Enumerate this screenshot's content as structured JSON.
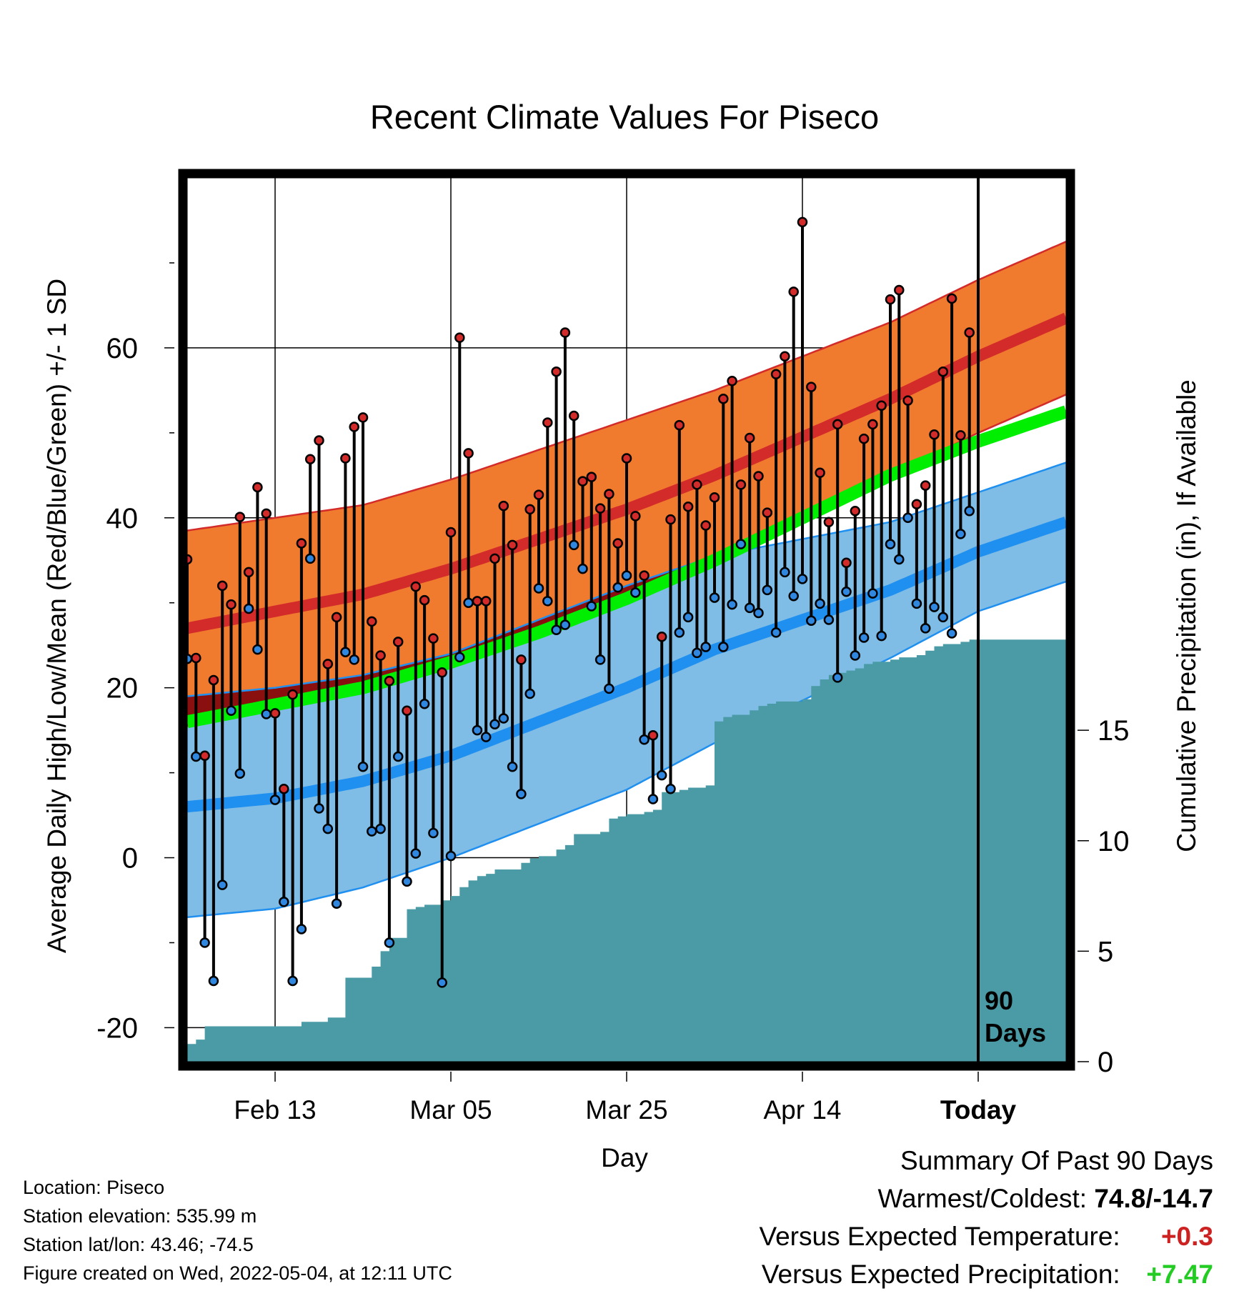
{
  "chart_data": {
    "type": "line",
    "title": "Recent Climate Values For Piseco",
    "xlabel": "Day",
    "ylabel_left": "Average Daily High/Low/Mean (Red/Blue/Green) +/- 1 SD",
    "ylabel_right": "Cumulative Precipitation (in), If Available",
    "x_range_days": [
      -88,
      12
    ],
    "x_ticks": [
      {
        "day": -78,
        "label": "Feb 13"
      },
      {
        "day": -58,
        "label": "Mar 05"
      },
      {
        "day": -38,
        "label": "Mar 25"
      },
      {
        "day": -18,
        "label": "Apr 14"
      },
      {
        "day": 2,
        "label": "Today"
      }
    ],
    "ylim_left": [
      -24,
      80
    ],
    "y_ticks_left": [
      "-20",
      "0",
      "20",
      "40",
      "60"
    ],
    "ylim_right": [
      0,
      40
    ],
    "y_ticks_right": [
      "0",
      "5",
      "10",
      "15"
    ],
    "today_marker": {
      "day": 2,
      "label_line1": "90",
      "label_line2": "Days"
    },
    "normals": {
      "days": [
        -88,
        -78,
        -68,
        -58,
        -48,
        -38,
        -28,
        -18,
        -8,
        2,
        12
      ],
      "high": [
        27,
        29,
        31,
        34,
        37.5,
        41,
        45,
        49.5,
        54,
        59,
        63.5
      ],
      "high_sd": [
        11.5,
        11,
        10.5,
        10.5,
        10.5,
        10.5,
        10,
        9.5,
        9,
        9,
        9
      ],
      "low": [
        6,
        7,
        9,
        12,
        16,
        20,
        24.5,
        28,
        31.5,
        36,
        39.5
      ],
      "low_sd": [
        13,
        13,
        12.5,
        12,
        12,
        12,
        11,
        9.5,
        8,
        7,
        7
      ],
      "mean": [
        16,
        18,
        20,
        23,
        26.5,
        30.5,
        35,
        40,
        45,
        49,
        52.5
      ]
    },
    "series": [
      {
        "name": "High",
        "values": [
          35.1,
          23.5,
          12.0,
          20.9,
          32.0,
          29.8,
          40.1,
          33.6,
          43.6,
          40.5,
          17.0,
          8.1,
          19.2,
          37.0,
          46.9,
          49.1,
          22.8,
          28.3,
          47.0,
          50.7,
          51.8,
          27.8,
          23.8,
          20.8,
          25.4,
          17.3,
          31.9,
          30.3,
          25.8,
          21.8,
          38.3,
          61.2,
          47.6,
          30.2,
          30.2,
          35.2,
          41.4,
          36.8,
          23.3,
          41.0,
          42.7,
          51.2,
          57.2,
          61.8,
          52.0,
          44.3,
          44.8,
          41.1,
          42.8,
          37.0,
          47.0,
          40.2,
          33.2,
          14.4,
          26.0,
          39.8,
          50.9,
          41.3,
          43.9,
          39.1,
          42.4,
          54.0,
          56.1,
          43.9,
          49.4,
          44.9,
          40.6,
          56.9,
          59.0,
          66.6,
          74.8,
          55.4,
          45.3,
          39.5,
          51.0,
          34.7,
          40.8,
          49.3,
          51.0,
          53.2,
          65.7,
          66.8,
          53.8,
          41.6,
          43.8,
          49.8,
          57.2,
          65.8,
          49.7,
          61.8
        ],
        "color": "#d32a2a"
      },
      {
        "name": "Low",
        "values": [
          23.4,
          11.9,
          -10.0,
          -14.5,
          -3.2,
          17.3,
          9.9,
          29.3,
          24.5,
          16.9,
          6.8,
          -5.2,
          -14.5,
          -8.4,
          35.2,
          5.8,
          3.4,
          -5.4,
          24.2,
          23.3,
          10.7,
          3.1,
          3.4,
          -10.0,
          11.9,
          -2.8,
          0.5,
          18.1,
          2.9,
          -14.7,
          0.2,
          23.6,
          30.0,
          15.0,
          14.2,
          15.7,
          16.4,
          10.7,
          7.5,
          19.3,
          31.7,
          30.2,
          26.8,
          27.4,
          36.8,
          34.0,
          29.6,
          23.3,
          19.9,
          31.8,
          33.2,
          31.2,
          13.9,
          6.9,
          9.7,
          8.1,
          26.5,
          28.3,
          24.1,
          24.8,
          30.6,
          24.8,
          29.8,
          36.9,
          29.4,
          28.8,
          31.5,
          26.5,
          33.6,
          30.8,
          32.8,
          27.9,
          29.9,
          28.0,
          21.2,
          31.3,
          23.8,
          25.9,
          31.1,
          26.1,
          36.9,
          35.1,
          40.0,
          29.9,
          27.0,
          29.5,
          28.3,
          26.4,
          38.1,
          40.8
        ],
        "color": "#2f87e0"
      },
      {
        "name": "Cumulative Precipitation",
        "days": [
          -88,
          -87,
          -86,
          -76,
          -75,
          -73,
          -72,
          -71,
          -70,
          -68,
          -67,
          -66,
          -65,
          -64,
          -63,
          -62,
          -61,
          -60,
          -59,
          -58,
          -57,
          -56,
          -55,
          -54,
          -53,
          -51,
          -50,
          -49,
          -48,
          -47,
          -46,
          -45,
          -44,
          -43,
          -42,
          -41,
          -40,
          -39,
          -38,
          -37,
          -36,
          -35,
          -34,
          -33,
          -32,
          -31,
          -30,
          -29,
          -28,
          -27,
          -26,
          -25,
          -24,
          -23,
          -22,
          -21,
          -20,
          -19,
          -18,
          -17,
          -16,
          -15,
          -14,
          -13,
          -12,
          -11,
          -10,
          -9,
          -8,
          -7,
          -6,
          -5,
          -4,
          -3,
          -2,
          -1,
          0,
          1,
          2,
          12
        ],
        "values": [
          0.8,
          1.0,
          1.6,
          1.6,
          1.8,
          1.8,
          2.0,
          2.0,
          3.8,
          3.8,
          4.3,
          5.0,
          5.6,
          5.6,
          6.9,
          7.0,
          7.1,
          7.1,
          7.3,
          7.5,
          7.9,
          8.2,
          8.4,
          8.5,
          8.7,
          8.7,
          9.0,
          9.2,
          9.3,
          9.3,
          9.6,
          9.8,
          10.3,
          10.3,
          10.3,
          10.4,
          11.0,
          11.1,
          11.2,
          11.2,
          11.3,
          11.4,
          12.2,
          12.2,
          12.3,
          12.4,
          12.4,
          12.5,
          15.4,
          15.6,
          15.7,
          15.7,
          15.9,
          16.1,
          16.2,
          16.3,
          16.3,
          16.3,
          16.4,
          17.0,
          17.3,
          17.5,
          17.6,
          17.7,
          17.8,
          18.0,
          18.1,
          18.1,
          18.2,
          18.3,
          18.3,
          18.4,
          18.6,
          18.8,
          18.9,
          18.9,
          19.0,
          19.1,
          19.1,
          19.1
        ],
        "color": "#4a9ba5"
      }
    ]
  },
  "info": {
    "location": "Location: Piseco",
    "elevation": "Station elevation: 535.99 m",
    "latlon": "Station lat/lon: 43.46; -74.5",
    "created": "Figure created on Wed, 2022-05-04, at 12:11 UTC"
  },
  "summary": {
    "title": "Summary Of Past 90 Days",
    "warmest_label": "Warmest/Coldest:",
    "warmest_value": "74.8/-14.7",
    "temp_label": "Versus Expected Temperature:",
    "temp_value": "+0.3",
    "temp_color": "#cc2222",
    "precip_label": "Versus Expected Precipitation:",
    "precip_value": "+7.47",
    "precip_color": "#22cc22"
  }
}
